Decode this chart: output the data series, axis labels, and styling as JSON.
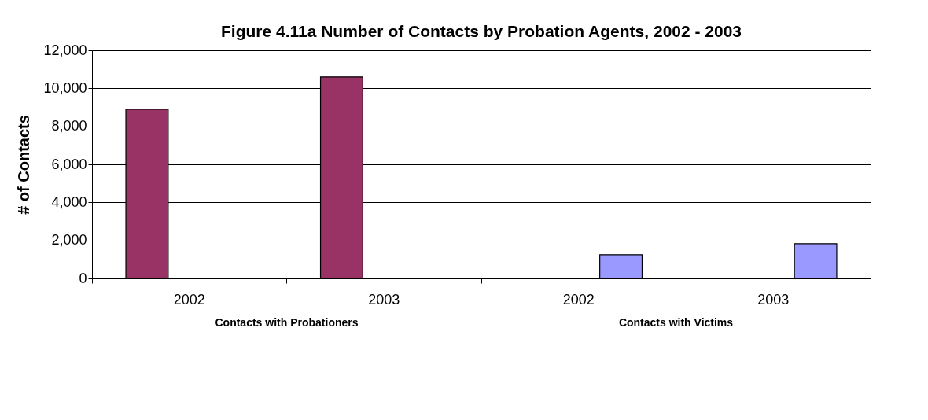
{
  "chart_data": {
    "type": "bar",
    "title": "Figure 4.11a Number of Contacts by Probation Agents, 2002 - 2003",
    "ylabel": "# of Contacts",
    "categories": [
      "2002",
      "2003",
      "2002",
      "2003"
    ],
    "series": [
      {
        "color": "#993366",
        "values": [
          8900,
          10600,
          null,
          null
        ]
      },
      {
        "color": "#9999ff",
        "values": [
          null,
          null,
          1250,
          1830
        ]
      }
    ],
    "annotations": [
      "Contacts with Probationers",
      "Contacts with Victims"
    ],
    "ylim": [
      0,
      12000
    ],
    "yticks": [
      {
        "value": 0,
        "label": "0"
      },
      {
        "value": 2000,
        "label": "2,000"
      },
      {
        "value": 4000,
        "label": "4,000"
      },
      {
        "value": 6000,
        "label": "6,000"
      },
      {
        "value": 8000,
        "label": "8,000"
      },
      {
        "value": 10000,
        "label": "10,000"
      },
      {
        "value": 12000,
        "label": "12,000"
      }
    ],
    "grid": "y",
    "legend": false
  }
}
